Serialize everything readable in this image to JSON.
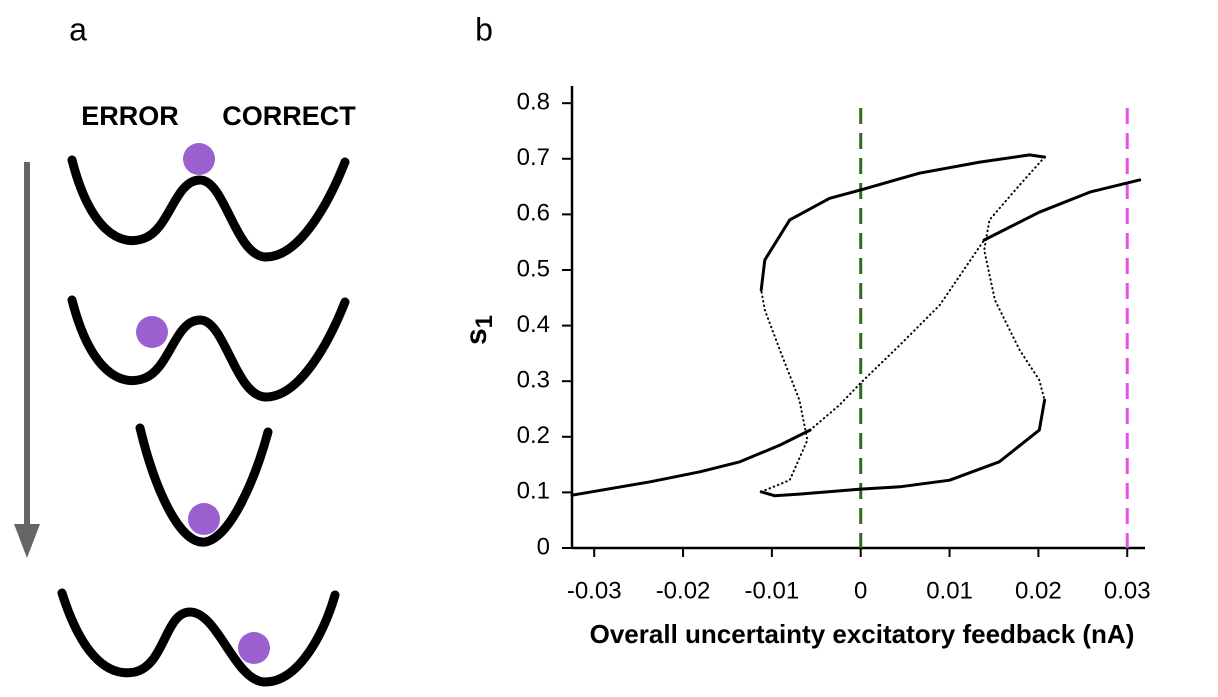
{
  "panels": {
    "a": "a",
    "b": "b"
  },
  "diagram": {
    "left_label": "ERROR",
    "right_label": "CORRECT"
  },
  "chart_data": {
    "type": "line",
    "xlabel": "Overall uncertainty excitatory feedback (nA)",
    "ylabel": "s",
    "ylabel_sub": "1",
    "xlim": [
      -0.0325,
      0.032
    ],
    "ylim": [
      0,
      0.83
    ],
    "xticks": [
      -0.03,
      -0.02,
      -0.01,
      0,
      0.01,
      0.02,
      0.03
    ],
    "yticks": [
      0,
      0.1,
      0.2,
      0.3,
      0.4,
      0.5,
      0.6,
      0.7,
      0.8
    ],
    "color": "#000000",
    "series": [
      {
        "dotted": false,
        "x": [
          -0.0325,
          -0.0237,
          -0.0181,
          -0.0136,
          -0.0091,
          -0.0057
        ],
        "values": [
          0.095,
          0.119,
          0.137,
          0.155,
          0.185,
          0.212
        ]
      },
      {
        "dotted": true,
        "x": [
          -0.0057,
          -0.0024,
          0,
          0.0044,
          0.0089,
          0.0139
        ],
        "values": [
          0.212,
          0.257,
          0.297,
          0.365,
          0.437,
          0.554
        ]
      },
      {
        "dotted": false,
        "x": [
          0.0139,
          0.0201,
          0.0258,
          0.0314
        ],
        "values": [
          0.554,
          0.604,
          0.64,
          0.662
        ]
      },
      {
        "dotted": false,
        "x": [
          -0.0112,
          -0.0108,
          -0.008,
          -0.0035,
          0,
          0.0066,
          0.0134,
          0.019,
          0.0207
        ],
        "values": [
          0.464,
          0.518,
          0.59,
          0.629,
          0.644,
          0.674,
          0.694,
          0.707,
          0.703
        ]
      },
      {
        "dotted": true,
        "x": [
          0.0207,
          0.0179,
          0.0145,
          0.0139,
          0.0151,
          0.0179,
          0.0201,
          0.0207
        ],
        "values": [
          0.703,
          0.653,
          0.59,
          0.536,
          0.446,
          0.356,
          0.302,
          0.266
        ]
      },
      {
        "dotted": false,
        "x": [
          0.0207,
          0.0201,
          0.0156,
          0.01,
          0.0044,
          0,
          -0.0069,
          -0.0097,
          -0.0112
        ],
        "values": [
          0.266,
          0.212,
          0.155,
          0.122,
          0.11,
          0.106,
          0.097,
          0.094,
          0.101
        ]
      },
      {
        "dotted": true,
        "x": [
          -0.0112,
          -0.008,
          -0.006,
          -0.0069,
          -0.0091,
          -0.0108,
          -0.0112
        ],
        "values": [
          0.101,
          0.122,
          0.194,
          0.266,
          0.356,
          0.428,
          0.464
        ]
      }
    ],
    "vlines": [
      {
        "x": 0,
        "color": "#2e6b1f"
      },
      {
        "x": 0.03,
        "color": "#e84ee8"
      }
    ]
  }
}
